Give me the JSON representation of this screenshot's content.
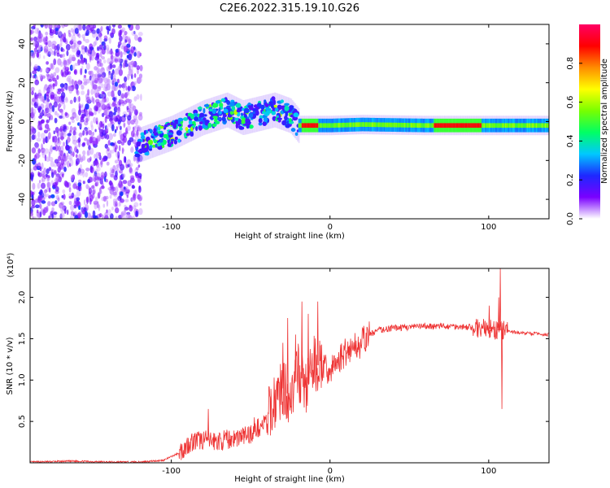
{
  "title": "C2E6.2022.315.19.10.G26",
  "chart_data": [
    {
      "type": "heatmap",
      "xlabel": "Height of straight line (km)",
      "ylabel": "Frequency (Hz)",
      "xlim": [
        -189,
        138
      ],
      "ylim": [
        -50,
        50
      ],
      "xticks": [
        "-100",
        "0",
        "100"
      ],
      "xtick_values": [
        -100,
        0,
        100
      ],
      "yticks": [
        "-40",
        "-20",
        "0",
        "20",
        "40"
      ],
      "ytick_values": [
        -40,
        -20,
        0,
        20,
        40
      ],
      "colorbar": {
        "label": "Normalized spectral amplitude",
        "ticks": [
          "0.0",
          "0.2",
          "0.4",
          "0.6",
          "0.8"
        ],
        "tick_values": [
          0.0,
          0.2,
          0.4,
          0.6,
          0.8
        ],
        "range": [
          0,
          1
        ],
        "colors": [
          "#ffffff",
          "#7a00ff",
          "#1e28ff",
          "#00c8ff",
          "#00ff64",
          "#78ff00",
          "#ffff00",
          "#ff8c00",
          "#ff0000",
          "#ff0064"
        ]
      },
      "ridge": {
        "x": [
          -120,
          -100,
          -80,
          -65,
          -55,
          -45,
          -35,
          -25,
          -20,
          -10,
          0,
          20,
          60,
          100,
          138
        ],
        "y": [
          -12,
          -6,
          2,
          6,
          2,
          4,
          6,
          3,
          -2,
          -2,
          -2,
          -1.5,
          -2,
          -2,
          -2
        ]
      }
    },
    {
      "type": "line",
      "xlabel": "Height of straight line (km)",
      "ylabel": "SNR (10 * v/v)",
      "yscale_label": "(x10⁴)",
      "xlim": [
        -189,
        138
      ],
      "ylim": [
        0,
        2.35
      ],
      "xticks": [
        "-100",
        "0",
        "100"
      ],
      "xtick_values": [
        -100,
        0,
        100
      ],
      "yticks": [
        "0.5",
        "1.0",
        "1.5",
        "2.0"
      ],
      "ytick_values": [
        0.5,
        1.0,
        1.5,
        2.0
      ],
      "color": "#ee3333",
      "x": [
        -189,
        -160,
        -140,
        -120,
        -105,
        -95,
        -88,
        -80,
        -70,
        -60,
        -50,
        -40,
        -35,
        -30,
        -25,
        -20,
        -15,
        -10,
        -5,
        0,
        10,
        20,
        25,
        30,
        40,
        60,
        80,
        100,
        104,
        107,
        109,
        112,
        120,
        130,
        138
      ],
      "y": [
        0.01,
        0.02,
        0.01,
        0.01,
        0.03,
        0.12,
        0.25,
        0.28,
        0.26,
        0.3,
        0.35,
        0.5,
        0.75,
        0.9,
        0.8,
        1.1,
        0.9,
        1.2,
        1.15,
        1.1,
        1.35,
        1.45,
        1.55,
        1.6,
        1.63,
        1.65,
        1.65,
        1.62,
        1.6,
        1.6,
        1.6,
        1.59,
        1.57,
        1.56,
        1.55
      ],
      "spikes": [
        {
          "x": -77,
          "y": 0.65
        },
        {
          "x": -48,
          "y": 0.55
        },
        {
          "x": -30,
          "y": 1.45
        },
        {
          "x": -27,
          "y": 1.75
        },
        {
          "x": -22,
          "y": 1.55
        },
        {
          "x": -18,
          "y": 1.95
        },
        {
          "x": -14,
          "y": 1.8
        },
        {
          "x": -8,
          "y": 1.95
        },
        {
          "x": 10,
          "y": 1.35
        },
        {
          "x": 100,
          "y": 1.9
        },
        {
          "x": 106,
          "y": 2.0
        },
        {
          "x": 107,
          "y": 2.35
        },
        {
          "x": 108,
          "y": 0.65
        }
      ]
    }
  ]
}
